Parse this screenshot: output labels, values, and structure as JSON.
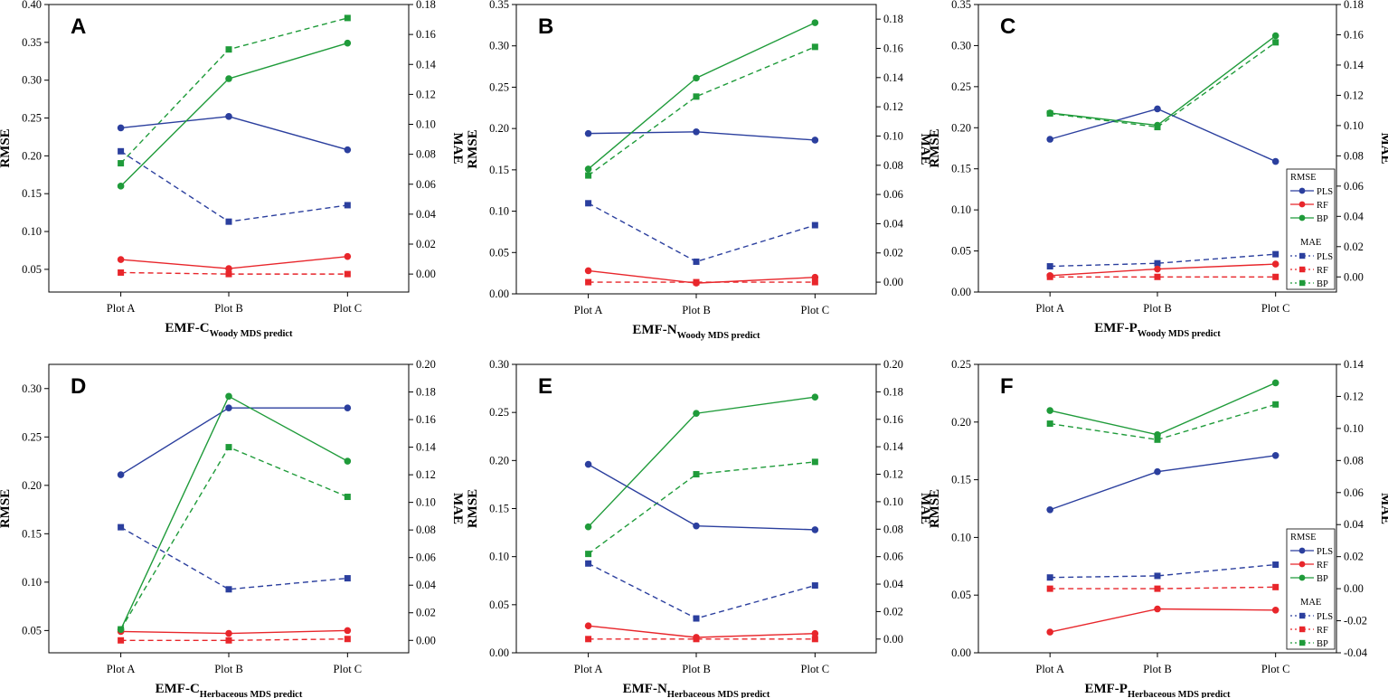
{
  "colors": {
    "PLS": "#2b3f9e",
    "RF": "#e8262b",
    "BP": "#1f9b3a"
  },
  "chart_data": [
    {
      "type": "line",
      "letter": "A",
      "categories": [
        "Plot A",
        "Plot B",
        "Plot C"
      ],
      "xlabel_main": "EMF-C",
      "xlabel_sub": "Woody MDS predict",
      "ylabel_left": "RMSE",
      "ylabel_right": "MAE",
      "left_ylim": [
        0.02,
        0.4
      ],
      "left_ticks": [
        "0.05",
        "0.10",
        "0.15",
        "0.20",
        "0.25",
        "0.30",
        "0.35",
        "0.40"
      ],
      "right_ylim": [
        -0.012,
        0.18
      ],
      "right_ticks": [
        "0.00",
        "0.02",
        "0.04",
        "0.06",
        "0.08",
        "0.10",
        "0.12",
        "0.14",
        "0.16",
        "0.18"
      ],
      "rmse": {
        "PLS": [
          0.237,
          0.252,
          0.208
        ],
        "RF": [
          0.063,
          0.051,
          0.067
        ],
        "BP": [
          0.16,
          0.302,
          0.349
        ]
      },
      "mae": {
        "PLS": [
          0.082,
          0.035,
          0.046
        ],
        "RF": [
          0.001,
          0.0,
          0.0
        ],
        "BP": [
          0.074,
          0.15,
          0.171
        ]
      },
      "legend": false
    },
    {
      "type": "line",
      "letter": "B",
      "categories": [
        "Plot A",
        "Plot B",
        "Plot C"
      ],
      "xlabel_main": "EMF-N",
      "xlabel_sub": "Woody MDS predict",
      "ylabel_left": "RMSE",
      "ylabel_right": "MAE",
      "left_ylim": [
        0.0,
        0.35
      ],
      "left_ticks": [
        "0.00",
        "0.05",
        "0.10",
        "0.15",
        "0.20",
        "0.25",
        "0.30",
        "0.35"
      ],
      "right_ylim": [
        -0.008,
        0.19
      ],
      "right_ticks": [
        "0.00",
        "0.02",
        "0.04",
        "0.06",
        "0.08",
        "0.10",
        "0.12",
        "0.14",
        "0.16",
        "0.18"
      ],
      "rmse": {
        "PLS": [
          0.194,
          0.196,
          0.186
        ],
        "RF": [
          0.028,
          0.013,
          0.02
        ],
        "BP": [
          0.151,
          0.261,
          0.328
        ]
      },
      "mae": {
        "PLS": [
          0.054,
          0.014,
          0.039
        ],
        "RF": [
          0.0,
          0.0,
          0.0
        ],
        "BP": [
          0.073,
          0.127,
          0.161
        ]
      },
      "legend": false
    },
    {
      "type": "line",
      "letter": "C",
      "categories": [
        "Plot A",
        "Plot B",
        "Plot C"
      ],
      "xlabel_main": "EMF-P",
      "xlabel_sub": "Woody MDS predict",
      "ylabel_left": "RMSE",
      "ylabel_right": "MAE",
      "left_ylim": [
        0.0,
        0.35
      ],
      "left_ticks": [
        "0.00",
        "0.05",
        "0.10",
        "0.15",
        "0.20",
        "0.25",
        "0.30",
        "0.35"
      ],
      "right_ylim": [
        -0.01,
        0.18
      ],
      "right_ticks": [
        "0.00",
        "0.02",
        "0.04",
        "0.06",
        "0.08",
        "0.10",
        "0.12",
        "0.14",
        "0.16",
        "0.18"
      ],
      "rmse": {
        "PLS": [
          0.186,
          0.223,
          0.159
        ],
        "RF": [
          0.02,
          0.028,
          0.034
        ],
        "BP": [
          0.218,
          0.203,
          0.312
        ]
      },
      "mae": {
        "PLS": [
          0.007,
          0.009,
          0.015
        ],
        "RF": [
          0.0,
          0.0,
          0.0
        ],
        "BP": [
          0.108,
          0.099,
          0.155
        ]
      },
      "legend": true
    },
    {
      "type": "line",
      "letter": "D",
      "categories": [
        "Plot A",
        "Plot B",
        "Plot C"
      ],
      "xlabel_main": "EMF-C",
      "xlabel_sub": "Herbaceous MDS predict",
      "ylabel_left": "RMSE",
      "ylabel_right": "MAE",
      "left_ylim": [
        0.027,
        0.325
      ],
      "left_ticks": [
        "0.05",
        "0.10",
        "0.15",
        "0.20",
        "0.25",
        "0.30"
      ],
      "right_ylim": [
        -0.009,
        0.2
      ],
      "right_ticks": [
        "0.00",
        "0.02",
        "0.04",
        "0.06",
        "0.08",
        "0.10",
        "0.12",
        "0.14",
        "0.16",
        "0.18",
        "0.20"
      ],
      "rmse": {
        "PLS": [
          0.211,
          0.28,
          0.28
        ],
        "RF": [
          0.049,
          0.047,
          0.05
        ],
        "BP": [
          0.051,
          0.292,
          0.225
        ]
      },
      "mae": {
        "PLS": [
          0.082,
          0.037,
          0.045
        ],
        "RF": [
          0.0,
          0.0,
          0.001
        ],
        "BP": [
          0.008,
          0.14,
          0.104
        ]
      },
      "legend": false
    },
    {
      "type": "line",
      "letter": "E",
      "categories": [
        "Plot A",
        "Plot B",
        "Plot C"
      ],
      "xlabel_main": "EMF-N",
      "xlabel_sub": "Herbaceous MDS predict",
      "ylabel_left": "RMSE",
      "ylabel_right": "MAE",
      "left_ylim": [
        0.0,
        0.3
      ],
      "left_ticks": [
        "0.00",
        "0.05",
        "0.10",
        "0.15",
        "0.20",
        "0.25",
        "0.30"
      ],
      "right_ylim": [
        -0.01,
        0.2
      ],
      "right_ticks": [
        "0.00",
        "0.02",
        "0.04",
        "0.06",
        "0.08",
        "0.10",
        "0.12",
        "0.14",
        "0.16",
        "0.18",
        "0.20"
      ],
      "rmse": {
        "PLS": [
          0.196,
          0.132,
          0.128
        ],
        "RF": [
          0.028,
          0.016,
          0.02
        ],
        "BP": [
          0.131,
          0.249,
          0.266
        ]
      },
      "mae": {
        "PLS": [
          0.055,
          0.015,
          0.039
        ],
        "RF": [
          0.0,
          0.0,
          0.0
        ],
        "BP": [
          0.062,
          0.12,
          0.129
        ]
      },
      "legend": false
    },
    {
      "type": "line",
      "letter": "F",
      "categories": [
        "Plot A",
        "Plot B",
        "Plot C"
      ],
      "xlabel_main": "EMF-P",
      "xlabel_sub": "Herbaceous MDS predict",
      "ylabel_left": "RMSE",
      "ylabel_right": "MAE",
      "left_ylim": [
        0.0,
        0.25
      ],
      "left_ticks": [
        "0.00",
        "0.05",
        "0.10",
        "0.15",
        "0.20",
        "0.25"
      ],
      "right_ylim": [
        -0.04,
        0.14
      ],
      "right_ticks": [
        "-0.04",
        "-0.02",
        "0.00",
        "0.02",
        "0.04",
        "0.06",
        "0.08",
        "0.10",
        "0.12",
        "0.14"
      ],
      "rmse": {
        "PLS": [
          0.124,
          0.157,
          0.171
        ],
        "RF": [
          0.018,
          0.038,
          0.037
        ],
        "BP": [
          0.21,
          0.189,
          0.234
        ]
      },
      "mae": {
        "PLS": [
          0.007,
          0.008,
          0.015
        ],
        "RF": [
          0.0,
          0.0,
          0.001
        ],
        "BP": [
          0.103,
          0.093,
          0.115
        ]
      },
      "legend": true
    }
  ],
  "legend": {
    "rmse_title": "RMSE",
    "mae_title": "MAE",
    "entries": [
      "PLS",
      "RF",
      "BP"
    ]
  }
}
